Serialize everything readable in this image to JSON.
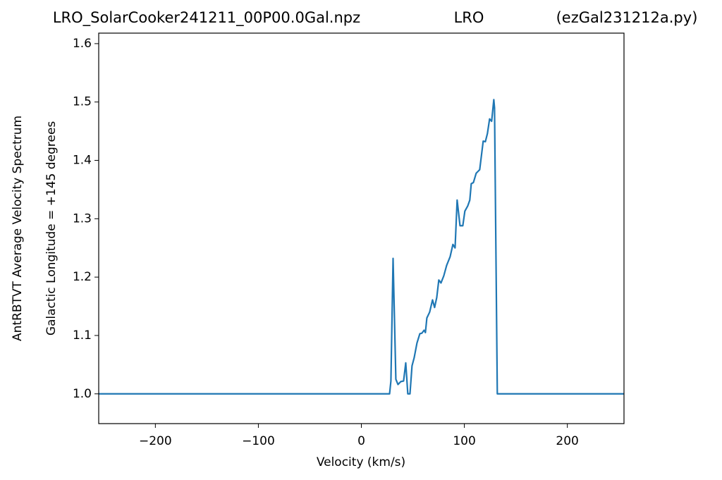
{
  "chart_data": {
    "type": "line",
    "titles": [
      "LRO_SolarCooker241211_00P00.0Gal.npz",
      "LRO",
      "(ezGal231212a.py)"
    ],
    "xlabel": "Velocity (km/s)",
    "ylabel": [
      "AntRBTVT Average Velocity Spectrum",
      "Galactic Longitude = +145 degrees"
    ],
    "x": [
      -255,
      27.4,
      28.7,
      30.8,
      33.5,
      35.6,
      38.3,
      41,
      43.1,
      45.1,
      47.2,
      49.2,
      51.3,
      54,
      56.8,
      58.8,
      60.9,
      62.2,
      63.6,
      66.3,
      69.1,
      71.1,
      73.2,
      75.2,
      77.3,
      80,
      82.8,
      86.2,
      88.9,
      91,
      93,
      95.8,
      98.5,
      100.5,
      103.3,
      105.3,
      106.7,
      108.8,
      111.5,
      114.9,
      118.3,
      120.4,
      122.4,
      124.5,
      126.5,
      128.6,
      129.3,
      132,
      255
    ],
    "series": [
      {
        "color": "#1f77b4",
        "values": [
          1.0,
          1.0,
          1.022,
          1.232,
          1.025,
          1.016,
          1.021,
          1.022,
          1.053,
          1.0,
          1.0,
          1.048,
          1.062,
          1.087,
          1.103,
          1.104,
          1.109,
          1.105,
          1.13,
          1.14,
          1.161,
          1.148,
          1.165,
          1.195,
          1.19,
          1.202,
          1.22,
          1.235,
          1.256,
          1.25,
          1.332,
          1.288,
          1.288,
          1.313,
          1.322,
          1.332,
          1.36,
          1.362,
          1.378,
          1.384,
          1.433,
          1.432,
          1.446,
          1.471,
          1.467,
          1.504,
          1.49,
          1.0,
          1.0
        ]
      }
    ],
    "xlim": [
      -255,
      255
    ],
    "xticks": [
      {
        "value": -200,
        "label": "−200"
      },
      {
        "value": -100,
        "label": "−100"
      },
      0,
      100,
      200
    ],
    "ylim": [
      0.949,
      1.618
    ],
    "yticks": [
      {
        "value": 1.0,
        "label": "1.0"
      },
      1.1,
      1.2,
      1.3,
      1.4,
      1.5,
      1.6
    ],
    "grid": false
  }
}
